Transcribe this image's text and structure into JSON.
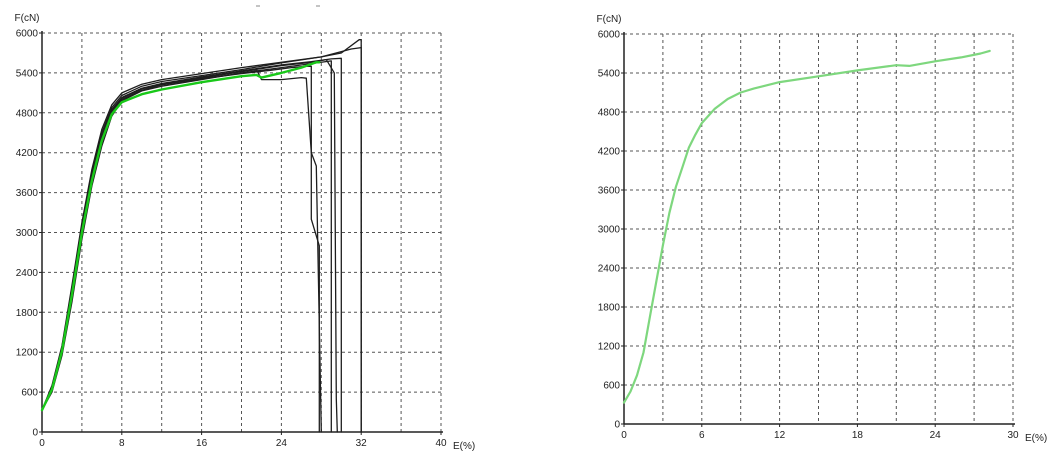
{
  "chart_data": [
    {
      "type": "line",
      "title": "",
      "xlabel": "E(%)",
      "ylabel": "F(cN)",
      "xlim": [
        0,
        40
      ],
      "ylim": [
        0,
        6000
      ],
      "xticks": [
        0,
        8,
        16,
        24,
        32,
        40
      ],
      "yticks": [
        0,
        600,
        1200,
        1800,
        2400,
        3000,
        3600,
        4200,
        4800,
        5400,
        6000
      ],
      "x_grid_step": 4,
      "y_grid_step": 600,
      "grid": true,
      "legend": "none",
      "series": [
        {
          "color": "#1e1e1e",
          "width": 1.3,
          "points": [
            [
              0,
              330
            ],
            [
              1,
              650
            ],
            [
              2,
              1250
            ],
            [
              3,
              2100
            ],
            [
              4,
              3050
            ],
            [
              5,
              3850
            ],
            [
              6,
              4450
            ],
            [
              7,
              4850
            ],
            [
              8,
              5030
            ],
            [
              10,
              5170
            ],
            [
              12,
              5240
            ],
            [
              16,
              5340
            ],
            [
              20,
              5430
            ],
            [
              24,
              5520
            ],
            [
              27,
              5570
            ],
            [
              29,
              5610
            ],
            [
              30,
              5620
            ],
            [
              30,
              2100
            ],
            [
              30,
              0
            ]
          ]
        },
        {
          "color": "#1e1e1e",
          "width": 1.3,
          "points": [
            [
              0,
              330
            ],
            [
              1,
              600
            ],
            [
              2,
              1150
            ],
            [
              3,
              1950
            ],
            [
              4,
              2900
            ],
            [
              5,
              3700
            ],
            [
              6,
              4300
            ],
            [
              7,
              4750
            ],
            [
              8,
              4980
            ],
            [
              10,
              5130
            ],
            [
              12,
              5200
            ],
            [
              16,
              5300
            ],
            [
              20,
              5400
            ],
            [
              24,
              5480
            ],
            [
              27,
              5540
            ],
            [
              29,
              5580
            ],
            [
              29,
              2800
            ],
            [
              29,
              0
            ]
          ]
        },
        {
          "color": "#1e1e1e",
          "width": 1.3,
          "points": [
            [
              0,
              330
            ],
            [
              1,
              700
            ],
            [
              2,
              1300
            ],
            [
              3,
              2200
            ],
            [
              4,
              3150
            ],
            [
              5,
              3950
            ],
            [
              6,
              4550
            ],
            [
              7,
              4920
            ],
            [
              8,
              5100
            ],
            [
              10,
              5230
            ],
            [
              12,
              5300
            ],
            [
              16,
              5390
            ],
            [
              20,
              5480
            ],
            [
              24,
              5560
            ],
            [
              28,
              5640
            ],
            [
              30,
              5720
            ],
            [
              31,
              5760
            ],
            [
              32,
              5780
            ],
            [
              32,
              0
            ]
          ]
        },
        {
          "color": "#1e1e1e",
          "width": 1.3,
          "points": [
            [
              0,
              330
            ],
            [
              1,
              680
            ],
            [
              2,
              1280
            ],
            [
              3,
              2150
            ],
            [
              4,
              3100
            ],
            [
              5,
              3900
            ],
            [
              6,
              4500
            ],
            [
              7,
              4880
            ],
            [
              8,
              5060
            ],
            [
              10,
              5200
            ],
            [
              12,
              5270
            ],
            [
              16,
              5360
            ],
            [
              20,
              5450
            ],
            [
              24,
              5550
            ],
            [
              28,
              5640
            ],
            [
              30,
              5700
            ],
            [
              31.8,
              5900
            ],
            [
              32,
              5900
            ],
            [
              32,
              0
            ]
          ]
        },
        {
          "color": "#1e1e1e",
          "width": 1.3,
          "points": [
            [
              0,
              330
            ],
            [
              1,
              620
            ],
            [
              2,
              1200
            ],
            [
              3,
              2050
            ],
            [
              4,
              3000
            ],
            [
              5,
              3800
            ],
            [
              6,
              4400
            ],
            [
              7,
              4800
            ],
            [
              8,
              5000
            ],
            [
              10,
              5140
            ],
            [
              12,
              5220
            ],
            [
              16,
              5310
            ],
            [
              20,
              5390
            ],
            [
              23,
              5440
            ],
            [
              25,
              5480
            ],
            [
              26.5,
              5500
            ],
            [
              27,
              5500
            ],
            [
              27,
              3200
            ],
            [
              27.8,
              2800
            ],
            [
              27.8,
              0
            ]
          ]
        },
        {
          "color": "#1e1e1e",
          "width": 1.3,
          "points": [
            [
              0,
              330
            ],
            [
              1,
              640
            ],
            [
              2,
              1230
            ],
            [
              3,
              2080
            ],
            [
              4,
              3020
            ],
            [
              5,
              3820
            ],
            [
              6,
              4420
            ],
            [
              7,
              4830
            ],
            [
              8,
              5020
            ],
            [
              10,
              5160
            ],
            [
              12,
              5230
            ],
            [
              16,
              5320
            ],
            [
              20,
              5420
            ],
            [
              21.5,
              5450
            ],
            [
              22,
              5300
            ],
            [
              24,
              5300
            ],
            [
              26,
              5330
            ],
            [
              26.5,
              5320
            ],
            [
              27,
              4200
            ],
            [
              27.5,
              4000
            ],
            [
              28,
              0
            ]
          ]
        },
        {
          "color": "#1e1e1e",
          "width": 1.3,
          "points": [
            [
              0,
              330
            ],
            [
              1,
              650
            ],
            [
              2,
              1240
            ],
            [
              3,
              2090
            ],
            [
              4,
              3040
            ],
            [
              5,
              3840
            ],
            [
              6,
              4440
            ],
            [
              7,
              4840
            ],
            [
              8,
              5025
            ],
            [
              10,
              5165
            ],
            [
              12,
              5235
            ],
            [
              16,
              5330
            ],
            [
              20,
              5420
            ],
            [
              24,
              5510
            ],
            [
              27,
              5560
            ],
            [
              28.5,
              5600
            ],
            [
              29.3,
              5400
            ],
            [
              29.5,
              500
            ],
            [
              29.6,
              0
            ]
          ]
        },
        {
          "color": "#19c819",
          "width": 2.4,
          "points": [
            [
              0,
              330
            ],
            [
              1,
              640
            ],
            [
              2,
              1220
            ],
            [
              3,
              2060
            ],
            [
              4,
              3000
            ],
            [
              5,
              3780
            ],
            [
              6,
              4380
            ],
            [
              7,
              4780
            ],
            [
              8,
              4960
            ],
            [
              10,
              5080
            ],
            [
              12,
              5150
            ],
            [
              16,
              5260
            ],
            [
              20,
              5350
            ],
            [
              21.5,
              5370
            ],
            [
              22,
              5330
            ],
            [
              24,
              5400
            ],
            [
              26,
              5480
            ],
            [
              27.5,
              5560
            ],
            [
              27.8,
              5560
            ]
          ]
        }
      ]
    },
    {
      "type": "line",
      "title": "",
      "xlabel": "E(%)",
      "ylabel": "F(cN)",
      "xlim": [
        0,
        30
      ],
      "ylim": [
        0,
        6000
      ],
      "xticks": [
        0,
        6,
        12,
        18,
        24,
        30
      ],
      "yticks": [
        0,
        600,
        1200,
        1800,
        2400,
        3000,
        3600,
        4200,
        4800,
        5400,
        6000
      ],
      "x_grid_step": 3,
      "y_grid_step": 600,
      "grid": true,
      "legend": "none",
      "series": [
        {
          "color": "#7ed77e",
          "width": 2.2,
          "points": [
            [
              0,
              330
            ],
            [
              0.5,
              500
            ],
            [
              1,
              750
            ],
            [
              1.5,
              1100
            ],
            [
              2,
              1650
            ],
            [
              2.5,
              2200
            ],
            [
              3,
              2750
            ],
            [
              3.5,
              3250
            ],
            [
              4,
              3650
            ],
            [
              4.5,
              3950
            ],
            [
              5,
              4250
            ],
            [
              5.5,
              4450
            ],
            [
              6,
              4630
            ],
            [
              7,
              4850
            ],
            [
              8,
              5000
            ],
            [
              9,
              5100
            ],
            [
              10,
              5160
            ],
            [
              12,
              5260
            ],
            [
              15,
              5350
            ],
            [
              18,
              5440
            ],
            [
              21,
              5520
            ],
            [
              22,
              5510
            ],
            [
              24,
              5580
            ],
            [
              26,
              5640
            ],
            [
              27.5,
              5700
            ],
            [
              28.2,
              5740
            ]
          ]
        }
      ]
    }
  ]
}
